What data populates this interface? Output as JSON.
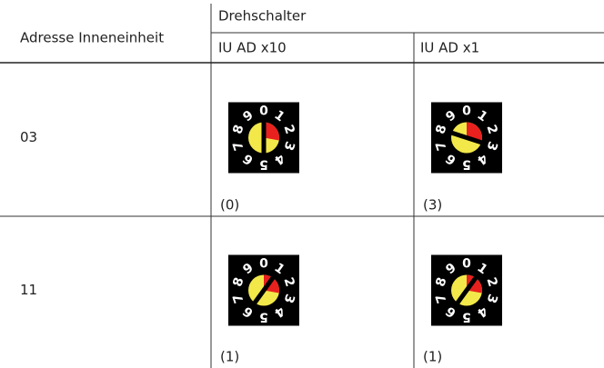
{
  "header": {
    "left": "Adresse Inneneinheit",
    "group": "Drehschalter",
    "columns": [
      "IU AD x10",
      "IU AD x1"
    ]
  },
  "dial_digits": [
    "0",
    "1",
    "2",
    "3",
    "4",
    "5",
    "6",
    "7",
    "8",
    "9"
  ],
  "rows": [
    {
      "address": "03",
      "cells": [
        {
          "position": 0,
          "caption": "(0)"
        },
        {
          "position": 3,
          "caption": "(3)"
        }
      ]
    },
    {
      "address": "11",
      "cells": [
        {
          "position": 1,
          "caption": "(1)"
        },
        {
          "position": 1,
          "caption": "(1)"
        }
      ]
    }
  ]
}
